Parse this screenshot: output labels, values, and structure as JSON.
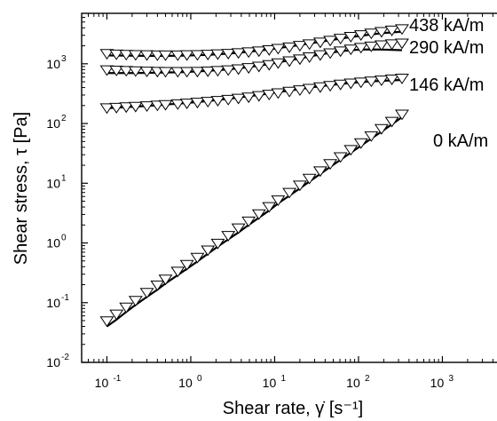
{
  "chart_data": {
    "type": "scatter",
    "xlabel": "Shear rate, γ̇ [s⁻¹]",
    "ylabel": "Shear stress, τ [Pa]",
    "x_scale": "log",
    "y_scale": "log",
    "xlim": [
      0.05,
      6000
    ],
    "ylim": [
      0.01,
      7000
    ],
    "x_ticks": [
      {
        "value": 0.1,
        "label": "10",
        "exp": "-1"
      },
      {
        "value": 1,
        "label": "10",
        "exp": "0"
      },
      {
        "value": 10,
        "label": "10",
        "exp": "1"
      },
      {
        "value": 100,
        "label": "10",
        "exp": "2"
      },
      {
        "value": 1000,
        "label": "10",
        "exp": "3"
      }
    ],
    "y_ticks": [
      {
        "value": 0.01,
        "label": "10",
        "exp": "-2"
      },
      {
        "value": 0.1,
        "label": "10",
        "exp": "-1"
      },
      {
        "value": 1,
        "label": "10",
        "exp": "0"
      },
      {
        "value": 10,
        "label": "10",
        "exp": "1"
      },
      {
        "value": 100,
        "label": "10",
        "exp": "2"
      },
      {
        "value": 1000,
        "label": "10",
        "exp": "3"
      }
    ],
    "marker": "triangle-down-open",
    "series": [
      {
        "name": "438 kA/m",
        "x": [
          0.1,
          0.13,
          0.17,
          0.22,
          0.3,
          0.4,
          0.5,
          0.7,
          0.9,
          1.2,
          1.6,
          2.1,
          2.8,
          3.7,
          4.9,
          6.5,
          8.6,
          11,
          15,
          20,
          26,
          35,
          46,
          61,
          81,
          107,
          142,
          188,
          250,
          330
        ],
        "y": [
          1500,
          1470,
          1450,
          1440,
          1430,
          1420,
          1420,
          1420,
          1430,
          1440,
          1460,
          1480,
          1510,
          1550,
          1600,
          1660,
          1740,
          1830,
          1930,
          2050,
          2180,
          2330,
          2500,
          2700,
          2900,
          3100,
          3300,
          3500,
          3700,
          3900
        ],
        "fit_y": [
          1380,
          1375,
          1370,
          1365,
          1360,
          1360,
          1360,
          1365,
          1375,
          1390,
          1410,
          1440,
          1480,
          1530,
          1590,
          1660,
          1740,
          1830,
          1940,
          2060,
          2190,
          2330,
          2480,
          2640,
          2800,
          2950,
          3100,
          3250,
          3350,
          3450
        ]
      },
      {
        "name": "290 kA/m",
        "x": [
          0.1,
          0.13,
          0.17,
          0.22,
          0.3,
          0.4,
          0.5,
          0.7,
          0.9,
          1.2,
          1.6,
          2.1,
          2.8,
          3.7,
          4.9,
          6.5,
          8.6,
          11,
          15,
          20,
          26,
          35,
          46,
          61,
          81,
          107,
          142,
          188,
          250,
          330
        ],
        "y": [
          800,
          790,
          780,
          770,
          760,
          755,
          750,
          750,
          750,
          755,
          765,
          780,
          800,
          830,
          870,
          920,
          980,
          1050,
          1130,
          1220,
          1320,
          1430,
          1540,
          1660,
          1780,
          1900,
          2000,
          2100,
          2180,
          2250
        ],
        "fit_y": [
          700,
          700,
          700,
          700,
          705,
          710,
          715,
          720,
          730,
          745,
          760,
          780,
          805,
          840,
          880,
          930,
          990,
          1060,
          1140,
          1230,
          1330,
          1430,
          1530,
          1620,
          1690,
          1730,
          1740,
          1730,
          1710,
          1690
        ]
      },
      {
        "name": "146 kA/m",
        "x": [
          0.1,
          0.13,
          0.17,
          0.22,
          0.3,
          0.4,
          0.5,
          0.7,
          0.9,
          1.2,
          1.6,
          2.1,
          2.8,
          3.7,
          4.9,
          6.5,
          8.6,
          11,
          15,
          20,
          26,
          35,
          46,
          61,
          81,
          107,
          142,
          188,
          250,
          330
        ],
        "y": [
          185,
          188,
          192,
          196,
          200,
          205,
          210,
          216,
          222,
          229,
          237,
          246,
          256,
          268,
          281,
          296,
          312,
          330,
          350,
          370,
          392,
          415,
          438,
          460,
          480,
          500,
          520,
          540,
          560,
          580
        ],
        "fit_y": [
          180,
          184,
          188,
          192,
          197,
          202,
          208,
          214,
          221,
          229,
          238,
          248,
          259,
          272,
          286,
          301,
          318,
          336,
          356,
          377,
          399,
          420,
          440,
          459,
          476,
          492,
          506,
          518,
          528,
          536
        ]
      },
      {
        "name": "0 kA/m",
        "x": [
          0.1,
          0.13,
          0.17,
          0.22,
          0.3,
          0.4,
          0.5,
          0.7,
          0.9,
          1.2,
          1.6,
          2.1,
          2.8,
          3.7,
          4.9,
          6.5,
          8.6,
          11,
          15,
          20,
          26,
          35,
          46,
          61,
          81,
          107,
          142,
          188,
          250,
          330
        ],
        "y": [
          0.05,
          0.065,
          0.085,
          0.11,
          0.15,
          0.2,
          0.25,
          0.34,
          0.44,
          0.58,
          0.77,
          1.0,
          1.35,
          1.8,
          2.35,
          3.1,
          4.1,
          5.3,
          7.1,
          9.4,
          12.2,
          16.3,
          21.5,
          28,
          37,
          48,
          63,
          83,
          110,
          145
        ],
        "fit_y": [
          0.04,
          0.052,
          0.07,
          0.092,
          0.125,
          0.165,
          0.21,
          0.29,
          0.37,
          0.49,
          0.66,
          0.87,
          1.15,
          1.5,
          2.0,
          2.65,
          3.5,
          4.6,
          6.2,
          8.2,
          10.7,
          14.3,
          18.8,
          24.7,
          32.5,
          42.5,
          56,
          73,
          97,
          128
        ]
      }
    ]
  }
}
